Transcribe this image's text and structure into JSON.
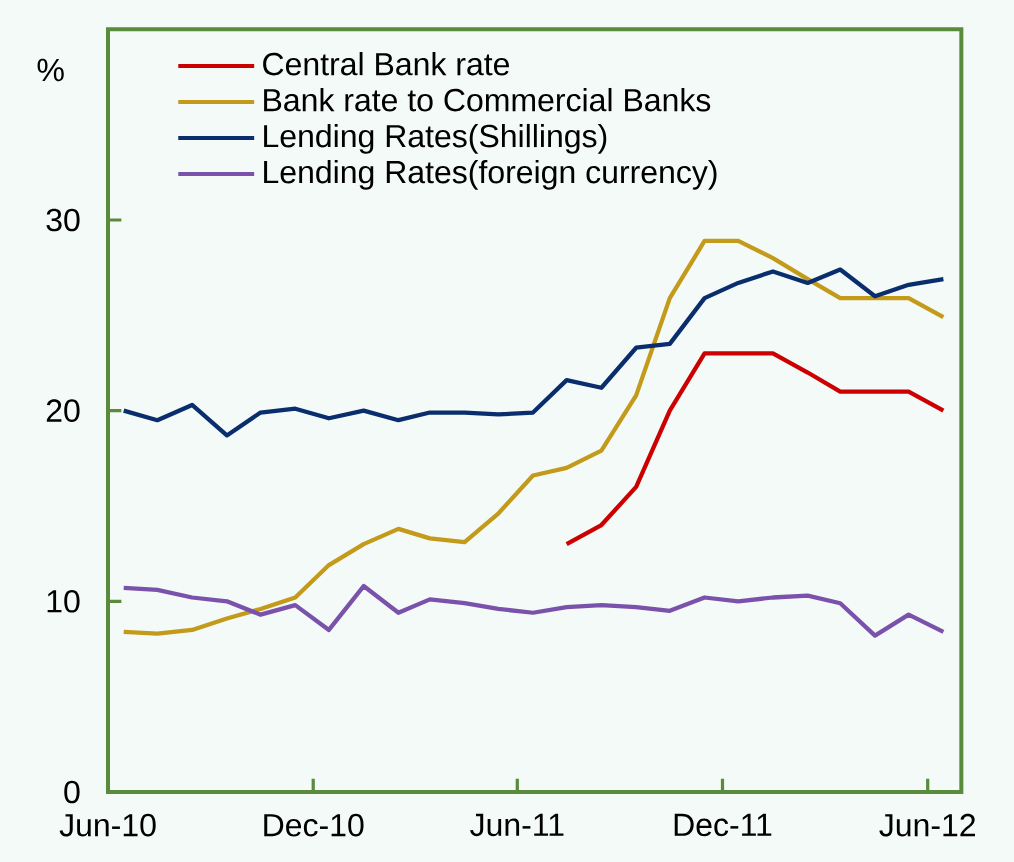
{
  "chart_data": {
    "type": "line",
    "ylabel": "%",
    "x": [
      "2010-06-15",
      "2010-07-15",
      "2010-08-15",
      "2010-09-15",
      "2010-10-15",
      "2010-11-15",
      "2010-12-15",
      "2011-01-15",
      "2011-02-15",
      "2011-03-15",
      "2011-04-15",
      "2011-05-15",
      "2011-06-15",
      "2011-07-15",
      "2011-08-15",
      "2011-09-15",
      "2011-10-15",
      "2011-11-15",
      "2011-12-15",
      "2012-01-15",
      "2012-02-15",
      "2012-03-15",
      "2012-04-15",
      "2012-05-15",
      "2012-06-15"
    ],
    "xlim": [
      "2010-06-01",
      "2012-07-01"
    ],
    "xticks": [
      {
        "value": "2010-06-01",
        "label": "Jun-10"
      },
      {
        "value": "2010-12-01",
        "label": "Dec-10"
      },
      {
        "value": "2011-06-01",
        "label": "Jun-11"
      },
      {
        "value": "2011-12-01",
        "label": "Dec-11"
      },
      {
        "value": "2012-06-01",
        "label": "Jun-12"
      }
    ],
    "ylim": [
      0,
      40
    ],
    "yticks": [
      0,
      10,
      20,
      30
    ],
    "grid": false,
    "legend": "top left",
    "marker": "none",
    "line_style": "solid",
    "series": [
      {
        "name": "Central Bank rate",
        "color": "#cc0000",
        "values": [
          null,
          null,
          null,
          null,
          null,
          null,
          null,
          null,
          null,
          null,
          null,
          null,
          null,
          13,
          14,
          16,
          20,
          23,
          23,
          23,
          22,
          21,
          21,
          21,
          20
        ]
      },
      {
        "name": "Bank rate to Commercial Banks",
        "color": "#c49a1a",
        "values": [
          8.4,
          8.3,
          8.5,
          9.1,
          9.6,
          10.2,
          11.9,
          13.0,
          13.8,
          13.3,
          13.1,
          14.6,
          16.6,
          17.0,
          17.9,
          20.8,
          25.9,
          28.9,
          28.9,
          28.0,
          26.9,
          25.9,
          25.9,
          25.9,
          24.9
        ]
      },
      {
        "name": "Lending Rates(Shillings)",
        "color": "#0a2d6e",
        "values": [
          20.0,
          19.5,
          20.3,
          18.7,
          19.9,
          20.1,
          19.6,
          20.0,
          19.5,
          19.9,
          19.9,
          19.8,
          19.9,
          21.6,
          21.2,
          23.3,
          23.5,
          25.9,
          26.7,
          27.3,
          26.7,
          27.4,
          26.0,
          26.6,
          26.9
        ]
      },
      {
        "name": "Lending Rates(foreign currency)",
        "color": "#7b52ab",
        "values": [
          10.7,
          10.6,
          10.2,
          10.0,
          9.3,
          9.8,
          8.5,
          10.8,
          9.4,
          10.1,
          9.9,
          9.6,
          9.4,
          9.7,
          9.8,
          9.7,
          9.5,
          10.2,
          10.0,
          10.2,
          10.3,
          9.9,
          8.2,
          9.3,
          8.4
        ]
      }
    ]
  }
}
